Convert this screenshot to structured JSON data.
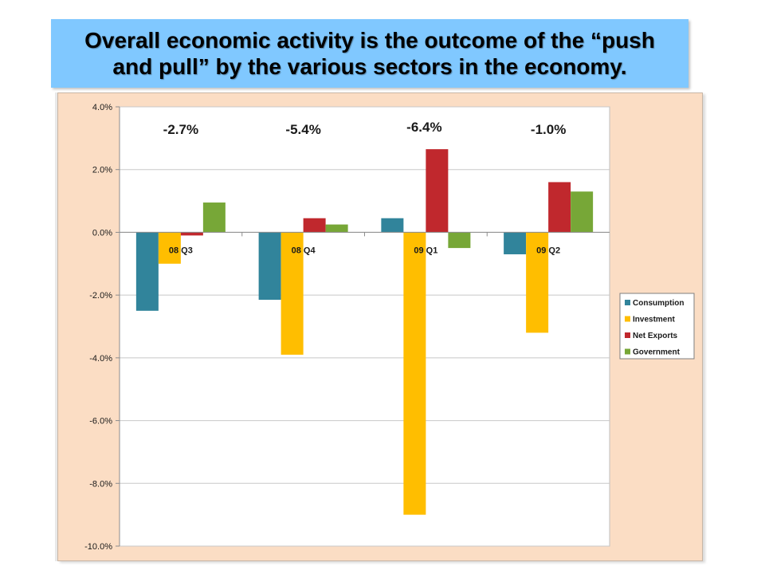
{
  "title": "Overall economic activity is the outcome of the “push and pull” by the various sectors in the economy.",
  "colors": {
    "title_bg": "#80c8ff",
    "chart_bg": "#fbddc4",
    "consumption": "#31849b",
    "investment": "#ffbe00",
    "net_exports": "#c0282d",
    "government": "#77a737"
  },
  "chart_data": {
    "type": "bar",
    "categories": [
      "08 Q3",
      "08 Q4",
      "09 Q1",
      "09 Q2"
    ],
    "totals": [
      "-2.7%",
      "-5.4%",
      "-6.4%",
      "-1.0%"
    ],
    "series": [
      {
        "name": "Consumption",
        "values": [
          -2.5,
          -2.15,
          0.45,
          -0.7
        ]
      },
      {
        "name": "Investment",
        "values": [
          -1.0,
          -3.9,
          -9.0,
          -3.2
        ]
      },
      {
        "name": "Net Exports",
        "values": [
          -0.1,
          0.45,
          2.65,
          1.6
        ]
      },
      {
        "name": "Government",
        "values": [
          0.95,
          0.25,
          -0.5,
          1.3
        ]
      }
    ],
    "ylim": [
      -10,
      4
    ],
    "yticks": [
      "4.0%",
      "2.0%",
      "0.0%",
      "-2.0%",
      "-4.0%",
      "-6.0%",
      "-8.0%",
      "-10.0%"
    ],
    "ytick_values": [
      4,
      2,
      0,
      -2,
      -4,
      -6,
      -8,
      -10
    ],
    "legend_position": "right",
    "grid": true
  }
}
